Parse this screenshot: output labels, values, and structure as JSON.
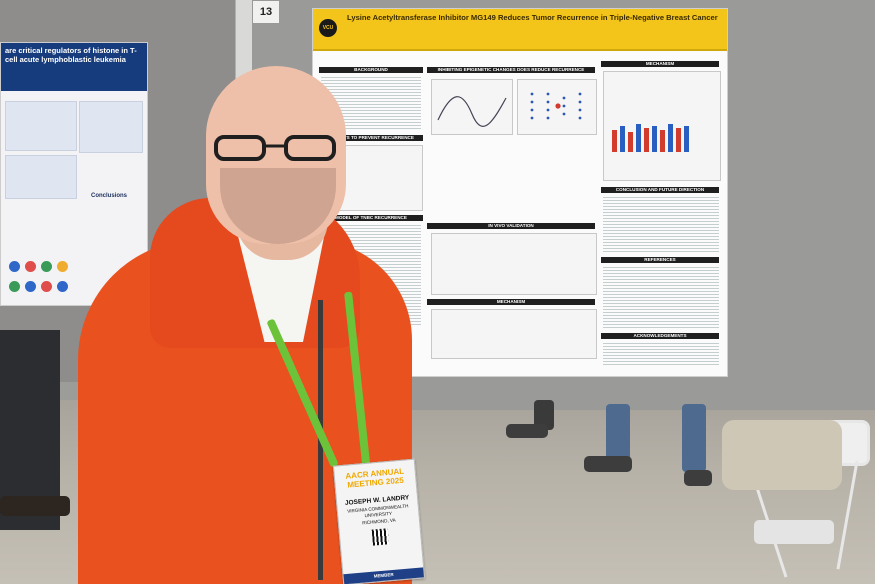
{
  "scene": {
    "board_number": "13"
  },
  "poster_main": {
    "title": "Lysine Acetyltransferase Inhibitor MG149 Reduces Tumor Recurrence in Triple-Negative Breast Cancer",
    "logo_text": "VCU",
    "sections": [
      "BACKGROUND",
      "INHIBITING EPIGENETIC CHANGES DOES REDUCE RECURRENCE",
      "MECHANISM",
      "TARGETS TO PREVENT RECURRENCE",
      "CONCLUSION AND FUTURE DIRECTION",
      "MODEL OF TNBC RECURRENCE",
      "IN VIVO VALIDATION",
      "REFERENCES",
      "MECHANISM",
      "ACKNOWLEDGEMENTS"
    ]
  },
  "poster_left": {
    "header": "are critical regulators of histone in T-cell acute lymphoblastic leukemia",
    "conclusions_label": "Conclusions"
  },
  "badge": {
    "event_prefix": "AACR",
    "event_suffix": "ANNUAL MEETING 2025",
    "name": "JOSEPH W. LANDRY",
    "affiliation": "VIRGINIA COMMONWEALTH UNIVERSITY",
    "location": "RICHMOND, VA",
    "footer": "MEMBER"
  },
  "colors": {
    "jacket": "#e9521f",
    "lanyard": "#6cc33a",
    "poster_title_bar": "#f3c51b",
    "left_poster_header": "#173c7e"
  }
}
